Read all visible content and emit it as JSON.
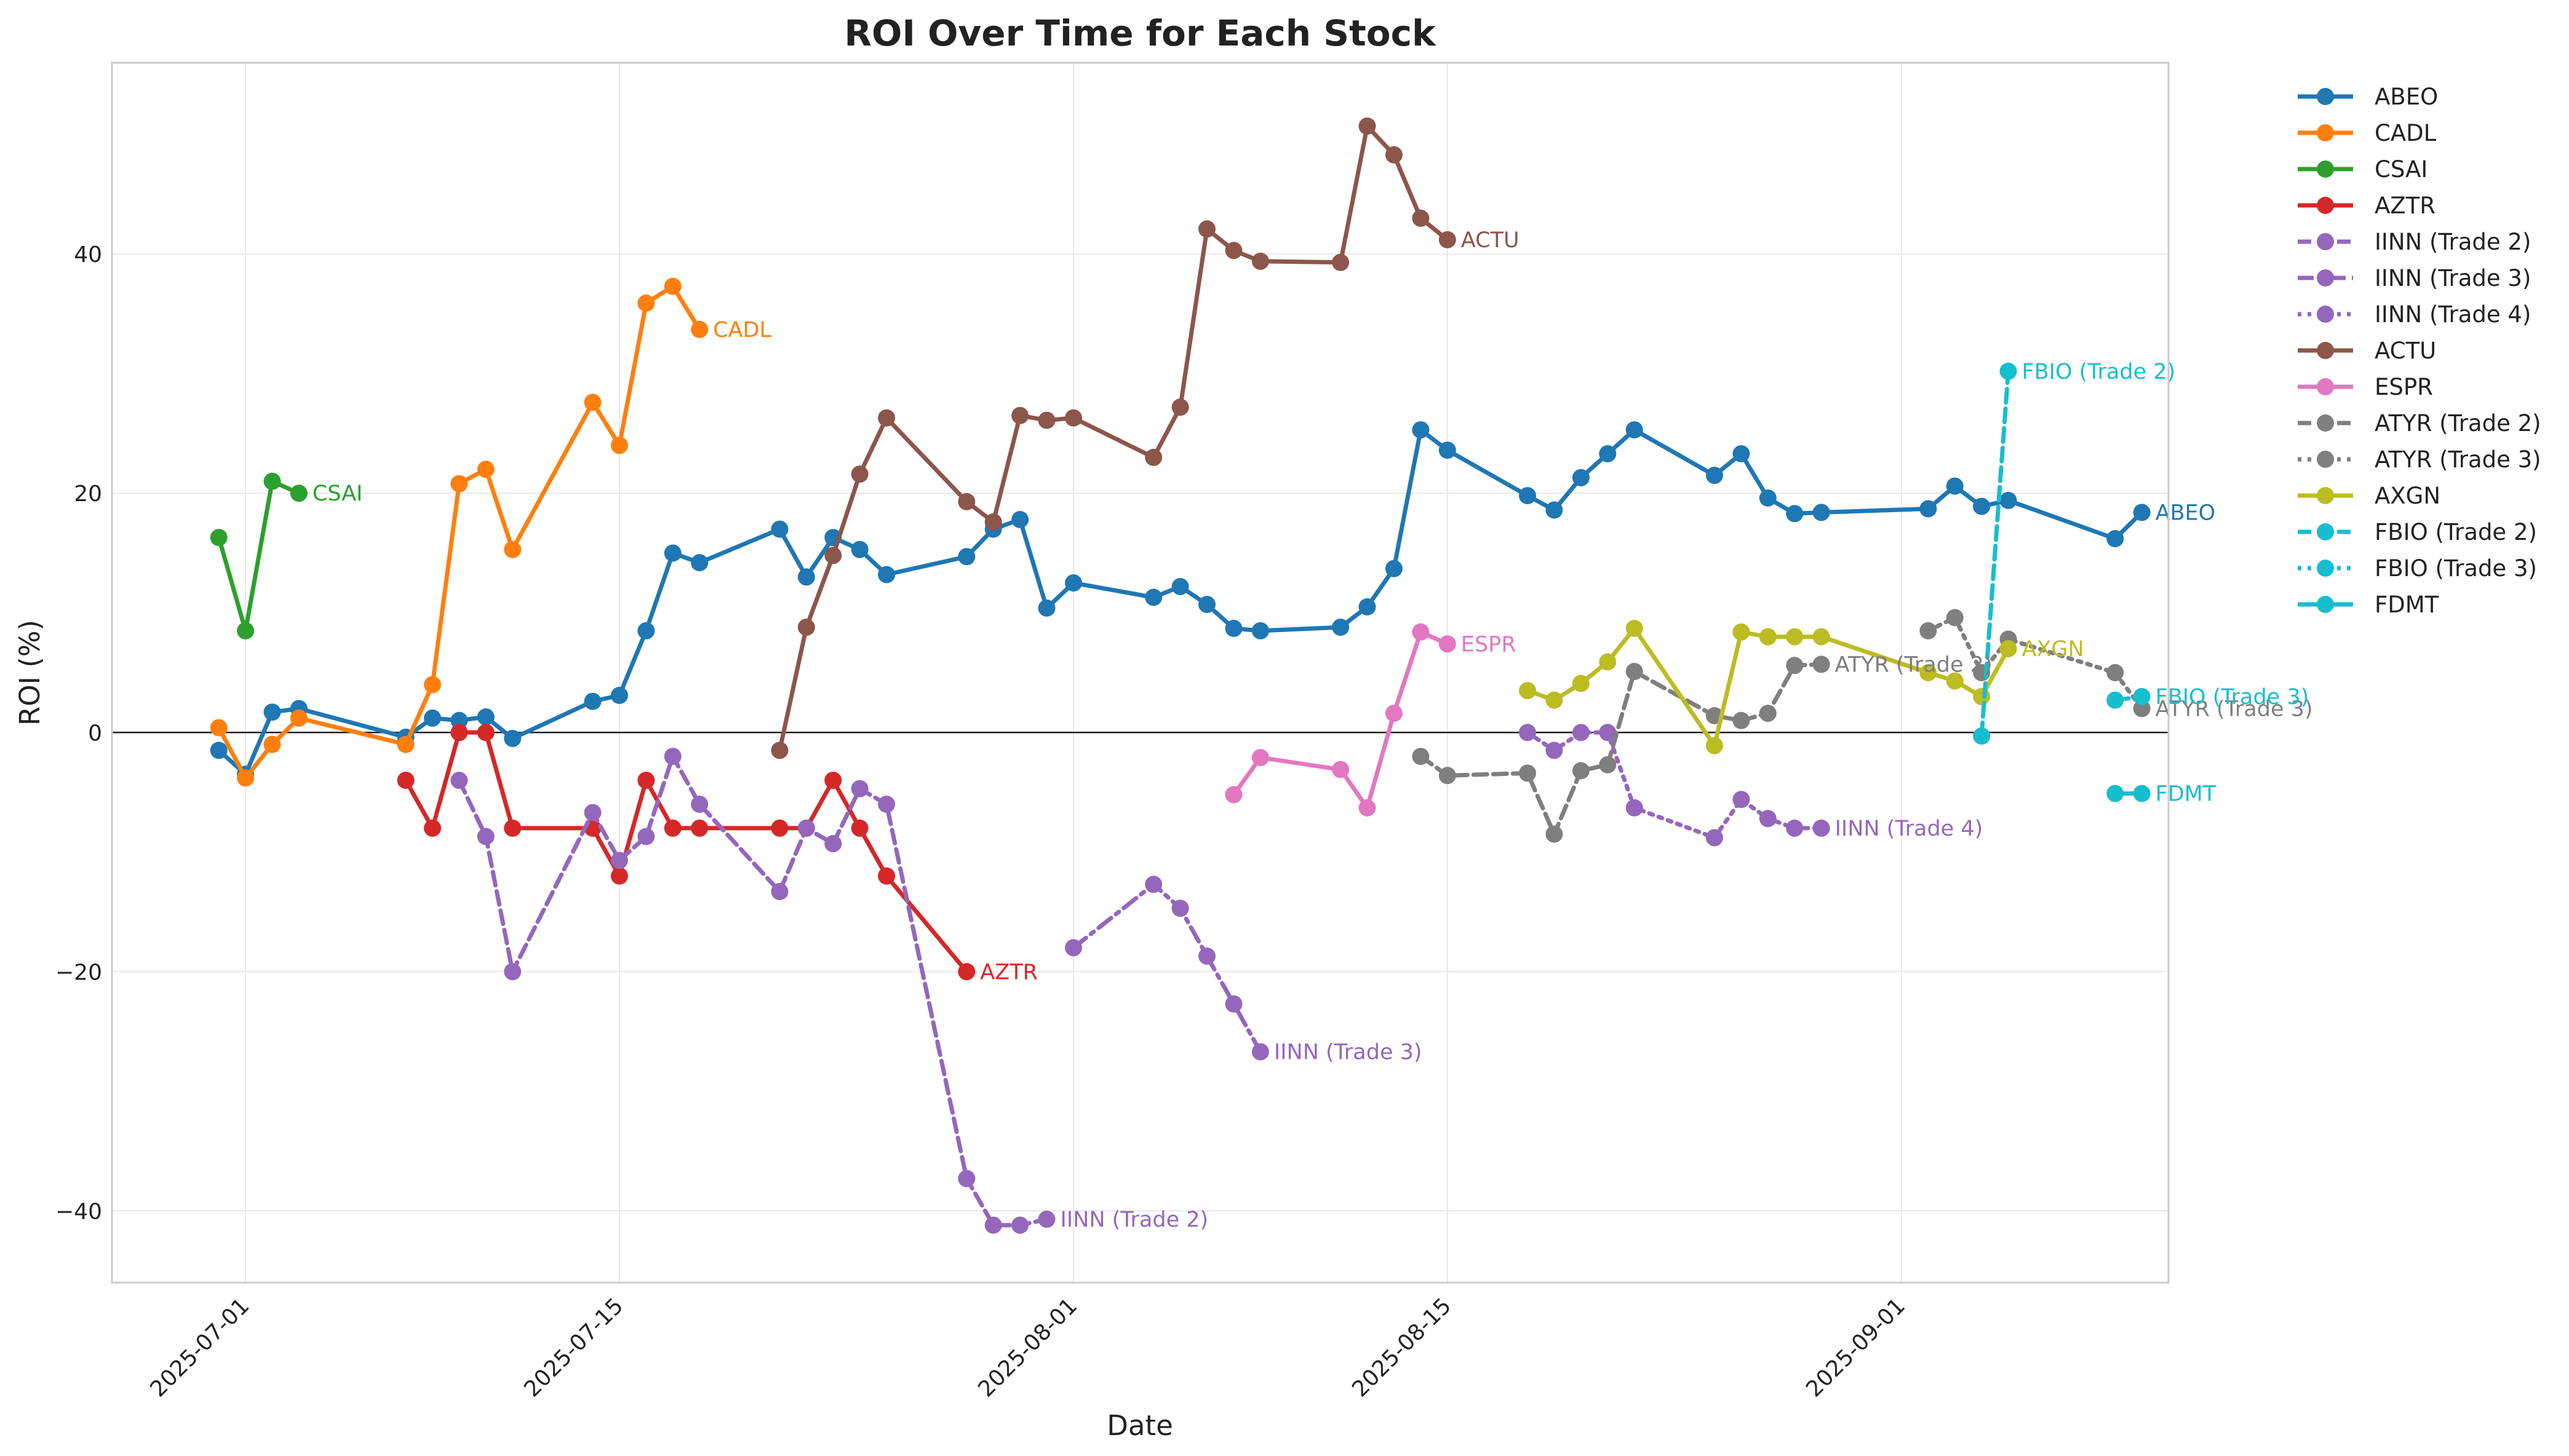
{
  "chart_data": {
    "type": "line",
    "title": "ROI Over Time for Each Stock",
    "xlabel": "Date",
    "ylabel": "ROI (%)",
    "x_type": "date",
    "xlim": [
      "2025-06-26",
      "2025-09-11"
    ],
    "ylim": [
      -46,
      56
    ],
    "x_ticks": [
      "2025-07-01",
      "2025-07-15",
      "2025-08-01",
      "2025-08-15",
      "2025-09-01"
    ],
    "y_ticks": [
      -40,
      -20,
      0,
      20,
      40
    ],
    "y_tick_labels": [
      "−40",
      "−20",
      "0",
      "20",
      "40"
    ],
    "grid": true,
    "zero_line": true,
    "legend_position": "outside-right",
    "series": [
      {
        "name": "ABEO",
        "color": "#1f77b4",
        "dash": "solid",
        "end_label": "ABEO",
        "points": [
          [
            "2025-06-30",
            -1.5
          ],
          [
            "2025-07-01",
            -3.5
          ],
          [
            "2025-07-02",
            1.7
          ],
          [
            "2025-07-03",
            2.0
          ],
          [
            "2025-07-07",
            -0.4
          ],
          [
            "2025-07-08",
            1.2
          ],
          [
            "2025-07-09",
            1.0
          ],
          [
            "2025-07-10",
            1.3
          ],
          [
            "2025-07-11",
            -0.5
          ],
          [
            "2025-07-14",
            2.6
          ],
          [
            "2025-07-15",
            3.1
          ],
          [
            "2025-07-16",
            8.5
          ],
          [
            "2025-07-17",
            15.0
          ],
          [
            "2025-07-18",
            14.2
          ],
          [
            "2025-07-21",
            17.0
          ],
          [
            "2025-07-22",
            13.0
          ],
          [
            "2025-07-23",
            16.3
          ],
          [
            "2025-07-24",
            15.3
          ],
          [
            "2025-07-25",
            13.2
          ],
          [
            "2025-07-28",
            14.7
          ],
          [
            "2025-07-29",
            17.0
          ],
          [
            "2025-07-30",
            17.8
          ],
          [
            "2025-07-31",
            10.4
          ],
          [
            "2025-08-01",
            12.5
          ],
          [
            "2025-08-04",
            11.3
          ],
          [
            "2025-08-05",
            12.2
          ],
          [
            "2025-08-06",
            10.7
          ],
          [
            "2025-08-07",
            8.7
          ],
          [
            "2025-08-08",
            8.5
          ],
          [
            "2025-08-11",
            8.8
          ],
          [
            "2025-08-12",
            10.5
          ],
          [
            "2025-08-13",
            13.7
          ],
          [
            "2025-08-14",
            25.3
          ],
          [
            "2025-08-15",
            23.6
          ],
          [
            "2025-08-18",
            19.8
          ],
          [
            "2025-08-19",
            18.6
          ],
          [
            "2025-08-20",
            21.3
          ],
          [
            "2025-08-21",
            23.3
          ],
          [
            "2025-08-22",
            25.3
          ],
          [
            "2025-08-25",
            21.5
          ],
          [
            "2025-08-26",
            23.3
          ],
          [
            "2025-08-27",
            19.6
          ],
          [
            "2025-08-28",
            18.3
          ],
          [
            "2025-08-29",
            18.4
          ],
          [
            "2025-09-02",
            18.7
          ],
          [
            "2025-09-03",
            20.6
          ],
          [
            "2025-09-04",
            18.9
          ],
          [
            "2025-09-05",
            19.4
          ],
          [
            "2025-09-09",
            16.2
          ],
          [
            "2025-09-10",
            18.4
          ]
        ]
      },
      {
        "name": "CADL",
        "color": "#ff7f0e",
        "dash": "solid",
        "end_label": "CADL",
        "points": [
          [
            "2025-06-30",
            0.4
          ],
          [
            "2025-07-01",
            -3.8
          ],
          [
            "2025-07-02",
            -1.0
          ],
          [
            "2025-07-03",
            1.2
          ],
          [
            "2025-07-07",
            -1.0
          ],
          [
            "2025-07-08",
            4.0
          ],
          [
            "2025-07-09",
            20.8
          ],
          [
            "2025-07-10",
            22.0
          ],
          [
            "2025-07-11",
            15.3
          ],
          [
            "2025-07-14",
            27.6
          ],
          [
            "2025-07-15",
            24.0
          ],
          [
            "2025-07-16",
            35.9
          ],
          [
            "2025-07-17",
            37.3
          ],
          [
            "2025-07-18",
            33.7
          ]
        ]
      },
      {
        "name": "CSAI",
        "color": "#2ca02c",
        "dash": "solid",
        "end_label": "CSAI",
        "points": [
          [
            "2025-06-30",
            16.3
          ],
          [
            "2025-07-01",
            8.5
          ],
          [
            "2025-07-02",
            21.0
          ],
          [
            "2025-07-03",
            20.0
          ]
        ]
      },
      {
        "name": "AZTR",
        "color": "#d62728",
        "dash": "solid",
        "end_label": "AZTR",
        "points": [
          [
            "2025-07-07",
            -4.0
          ],
          [
            "2025-07-08",
            -8.0
          ],
          [
            "2025-07-09",
            0.0
          ],
          [
            "2025-07-10",
            0.0
          ],
          [
            "2025-07-11",
            -8.0
          ],
          [
            "2025-07-14",
            -8.0
          ],
          [
            "2025-07-15",
            -12.0
          ],
          [
            "2025-07-16",
            -4.0
          ],
          [
            "2025-07-17",
            -8.0
          ],
          [
            "2025-07-18",
            -8.0
          ],
          [
            "2025-07-21",
            -8.0
          ],
          [
            "2025-07-22",
            -8.0
          ],
          [
            "2025-07-23",
            -4.0
          ],
          [
            "2025-07-24",
            -8.0
          ],
          [
            "2025-07-25",
            -12.0
          ],
          [
            "2025-07-28",
            -20.0
          ]
        ]
      },
      {
        "name": "IINN (Trade 2)",
        "color": "#9467bd",
        "dash": "dashed",
        "end_label": "IINN (Trade 2)",
        "points": [
          [
            "2025-07-09",
            -4.0
          ],
          [
            "2025-07-10",
            -8.7
          ],
          [
            "2025-07-11",
            -20.0
          ],
          [
            "2025-07-14",
            -6.7
          ],
          [
            "2025-07-15",
            -10.7
          ],
          [
            "2025-07-16",
            -8.7
          ],
          [
            "2025-07-17",
            -2.0
          ],
          [
            "2025-07-18",
            -6.0
          ],
          [
            "2025-07-21",
            -13.3
          ],
          [
            "2025-07-22",
            -8.0
          ],
          [
            "2025-07-23",
            -9.3
          ],
          [
            "2025-07-24",
            -4.7
          ],
          [
            "2025-07-25",
            -6.0
          ],
          [
            "2025-07-28",
            -37.3
          ],
          [
            "2025-07-29",
            -41.2
          ],
          [
            "2025-07-30",
            -41.2
          ],
          [
            "2025-07-31",
            -40.7
          ]
        ]
      },
      {
        "name": "IINN (Trade 3)",
        "color": "#9467bd",
        "dash": "dashdot",
        "end_label": "IINN (Trade 3)",
        "points": [
          [
            "2025-08-01",
            -18.0
          ],
          [
            "2025-08-04",
            -12.7
          ],
          [
            "2025-08-05",
            -14.7
          ],
          [
            "2025-08-06",
            -18.7
          ],
          [
            "2025-08-07",
            -22.7
          ],
          [
            "2025-08-08",
            -26.7
          ]
        ]
      },
      {
        "name": "IINN (Trade 4)",
        "color": "#9467bd",
        "dash": "dotted",
        "end_label": "IINN (Trade 4)",
        "points": [
          [
            "2025-08-18",
            0.0
          ],
          [
            "2025-08-19",
            -1.5
          ],
          [
            "2025-08-20",
            0.0
          ],
          [
            "2025-08-21",
            0.0
          ],
          [
            "2025-08-22",
            -6.3
          ],
          [
            "2025-08-25",
            -8.8
          ],
          [
            "2025-08-26",
            -5.6
          ],
          [
            "2025-08-27",
            -7.2
          ],
          [
            "2025-08-28",
            -8.0
          ],
          [
            "2025-08-29",
            -8.0
          ]
        ]
      },
      {
        "name": "ACTU",
        "color": "#8c564b",
        "dash": "solid",
        "end_label": "ACTU",
        "points": [
          [
            "2025-07-21",
            -1.5
          ],
          [
            "2025-07-22",
            8.8
          ],
          [
            "2025-07-23",
            14.8
          ],
          [
            "2025-07-24",
            21.6
          ],
          [
            "2025-07-25",
            26.3
          ],
          [
            "2025-07-28",
            19.3
          ],
          [
            "2025-07-29",
            17.6
          ],
          [
            "2025-07-30",
            26.5
          ],
          [
            "2025-07-31",
            26.1
          ],
          [
            "2025-08-01",
            26.3
          ],
          [
            "2025-08-04",
            23.0
          ],
          [
            "2025-08-05",
            27.2
          ],
          [
            "2025-08-06",
            42.1
          ],
          [
            "2025-08-07",
            40.3
          ],
          [
            "2025-08-08",
            39.4
          ],
          [
            "2025-08-11",
            39.3
          ],
          [
            "2025-08-12",
            50.7
          ],
          [
            "2025-08-13",
            48.3
          ],
          [
            "2025-08-14",
            43.0
          ],
          [
            "2025-08-15",
            41.2
          ]
        ]
      },
      {
        "name": "ESPR",
        "color": "#e377c2",
        "dash": "solid",
        "end_label": "ESPR",
        "points": [
          [
            "2025-08-07",
            -5.2
          ],
          [
            "2025-08-08",
            -2.1
          ],
          [
            "2025-08-11",
            -3.1
          ],
          [
            "2025-08-12",
            -6.3
          ],
          [
            "2025-08-13",
            1.6
          ],
          [
            "2025-08-14",
            8.4
          ],
          [
            "2025-08-15",
            7.4
          ]
        ]
      },
      {
        "name": "ATYR (Trade 2)",
        "color": "#7f7f7f",
        "dash": "dashed",
        "end_label": "ATYR (Trade 2)",
        "points": [
          [
            "2025-08-14",
            -2.0
          ],
          [
            "2025-08-15",
            -3.6
          ],
          [
            "2025-08-18",
            -3.4
          ],
          [
            "2025-08-19",
            -8.5
          ],
          [
            "2025-08-20",
            -3.2
          ],
          [
            "2025-08-21",
            -2.7
          ],
          [
            "2025-08-22",
            5.1
          ],
          [
            "2025-08-25",
            1.4
          ],
          [
            "2025-08-26",
            1.0
          ],
          [
            "2025-08-27",
            1.6
          ],
          [
            "2025-08-28",
            5.6
          ],
          [
            "2025-08-29",
            5.7
          ]
        ]
      },
      {
        "name": "ATYR (Trade 3)",
        "color": "#7f7f7f",
        "dash": "dotted",
        "end_label": "ATYR (Trade 3)",
        "points": [
          [
            "2025-09-02",
            8.5
          ],
          [
            "2025-09-03",
            9.6
          ],
          [
            "2025-09-04",
            5.0
          ],
          [
            "2025-09-05",
            7.8
          ],
          [
            "2025-09-09",
            5.0
          ],
          [
            "2025-09-10",
            2.0
          ]
        ]
      },
      {
        "name": "AXGN",
        "color": "#bcbd22",
        "dash": "solid",
        "end_label": "AXGN",
        "points": [
          [
            "2025-08-18",
            3.5
          ],
          [
            "2025-08-19",
            2.7
          ],
          [
            "2025-08-20",
            4.1
          ],
          [
            "2025-08-21",
            5.9
          ],
          [
            "2025-08-22",
            8.7
          ],
          [
            "2025-08-25",
            -1.1
          ],
          [
            "2025-08-26",
            8.4
          ],
          [
            "2025-08-27",
            8.0
          ],
          [
            "2025-08-28",
            8.0
          ],
          [
            "2025-08-29",
            8.0
          ],
          [
            "2025-09-02",
            5.0
          ],
          [
            "2025-09-03",
            4.3
          ],
          [
            "2025-09-04",
            3.0
          ],
          [
            "2025-09-05",
            7.0
          ]
        ]
      },
      {
        "name": "FBIO (Trade 2)",
        "color": "#17becf",
        "dash": "dashed",
        "end_label": "FBIO (Trade 2)",
        "points": [
          [
            "2025-09-04",
            -0.3
          ],
          [
            "2025-09-05",
            30.2
          ]
        ]
      },
      {
        "name": "FBIO (Trade 3)",
        "color": "#17becf",
        "dash": "dotted",
        "end_label": "FBIO (Trade 3)",
        "points": [
          [
            "2025-09-09",
            2.7
          ],
          [
            "2025-09-10",
            3.0
          ]
        ]
      },
      {
        "name": "FDMT",
        "color": "#17becf",
        "dash": "solid",
        "end_label": "FDMT",
        "points": [
          [
            "2025-09-09",
            -5.1
          ],
          [
            "2025-09-10",
            -5.1
          ]
        ]
      }
    ]
  }
}
